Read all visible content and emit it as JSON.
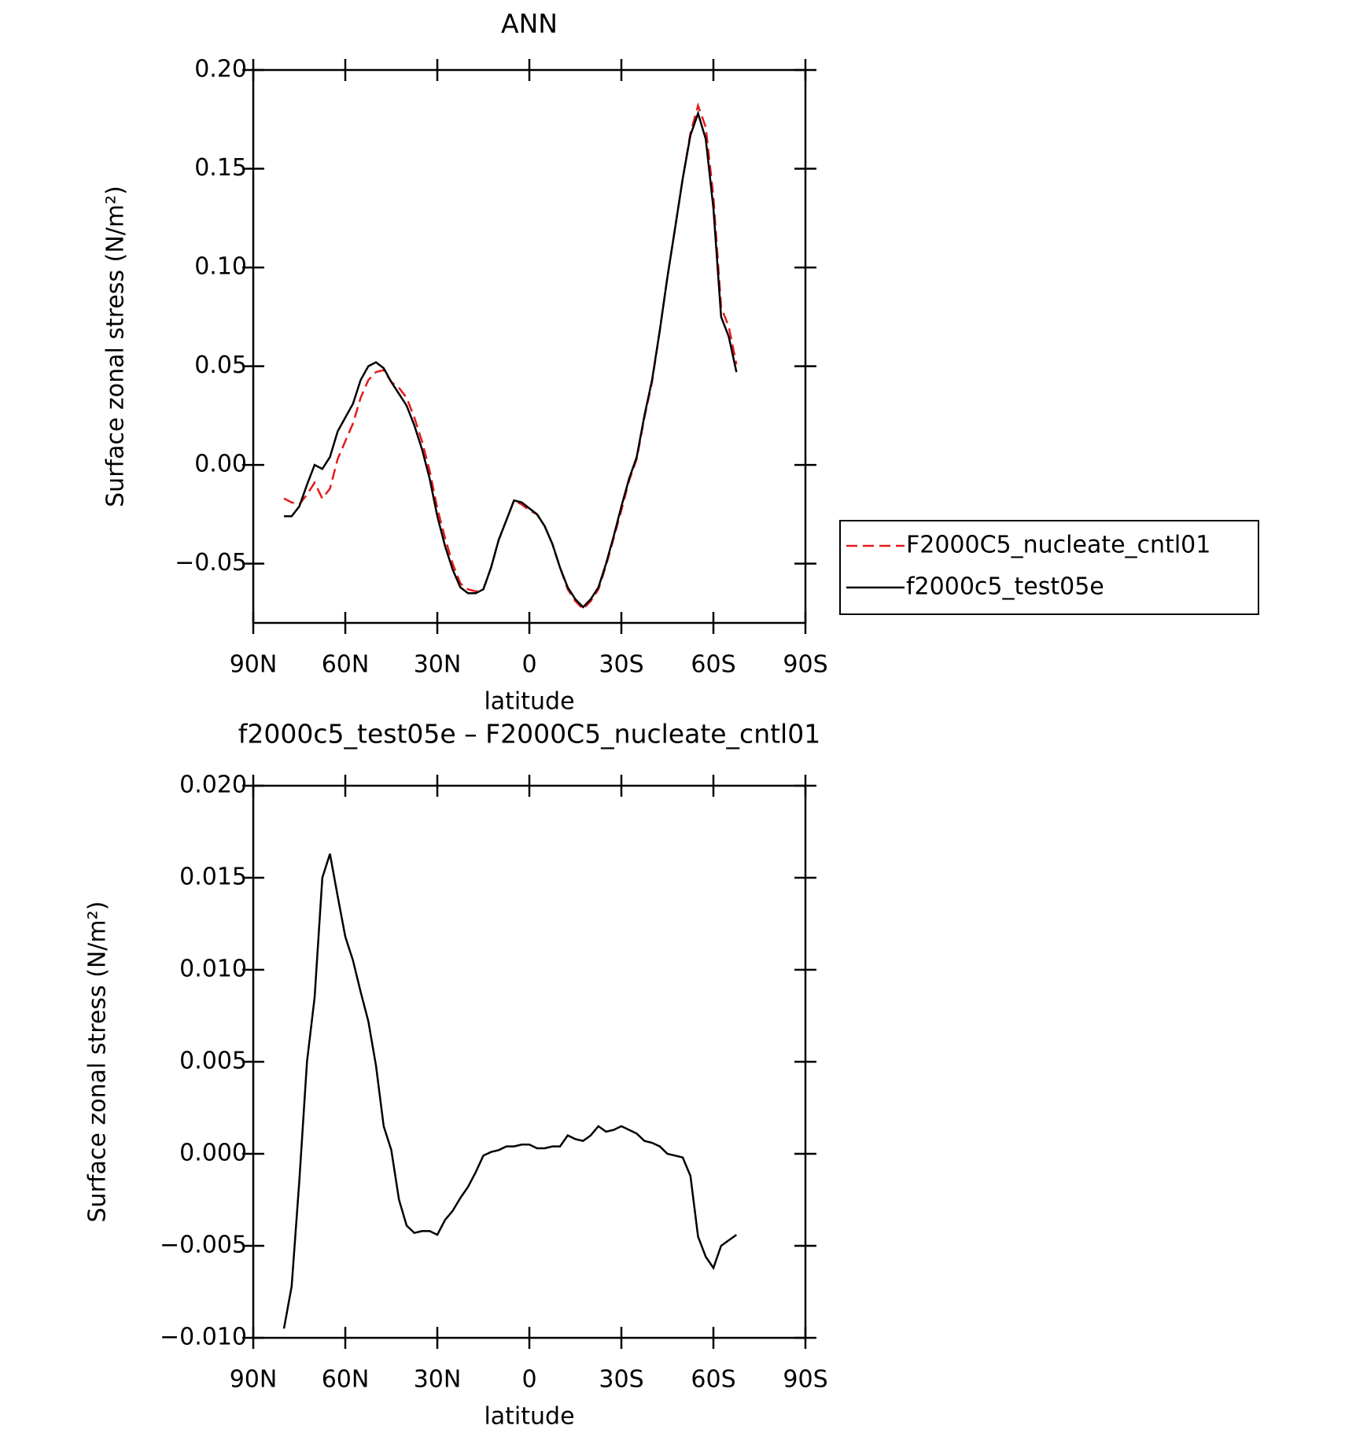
{
  "chart_data": [
    {
      "type": "line",
      "title": "ANN",
      "xlabel": "latitude",
      "ylabel": "Surface zonal stress (N/m²)",
      "x": [
        80,
        77.5,
        75,
        72.5,
        70,
        67.5,
        65,
        62.5,
        60,
        57.5,
        55,
        52.5,
        50,
        47.5,
        45,
        42.5,
        40,
        37.5,
        35,
        32.5,
        30,
        27.5,
        25,
        22.5,
        20,
        17.5,
        15,
        12.5,
        10,
        7.5,
        5,
        2.5,
        0,
        -2.5,
        -5,
        -7.5,
        -10,
        -12.5,
        -15,
        -17.5,
        -20,
        -22.5,
        -25,
        -27.5,
        -30,
        -32.5,
        -35,
        -37.5,
        -40,
        -42.5,
        -45,
        -47.5,
        -50,
        -52.5,
        -55,
        -57.5,
        -60,
        -62.5,
        -65,
        -67.5
      ],
      "series": [
        {
          "name": "F2000C5_nucleate_cntl01",
          "color": "#e41a1c",
          "dash": true,
          "values": [
            -0.017,
            -0.019,
            -0.02,
            -0.015,
            -0.009,
            -0.017,
            -0.012,
            0.003,
            0.012,
            0.021,
            0.034,
            0.043,
            0.047,
            0.048,
            0.042,
            0.039,
            0.034,
            0.024,
            0.012,
            -0.003,
            -0.022,
            -0.037,
            -0.05,
            -0.06,
            -0.063,
            -0.064,
            -0.063,
            -0.052,
            -0.038,
            -0.028,
            -0.018,
            -0.02,
            -0.023,
            -0.025,
            -0.031,
            -0.04,
            -0.052,
            -0.063,
            -0.069,
            -0.073,
            -0.069,
            -0.063,
            -0.051,
            -0.037,
            -0.023,
            -0.008,
            0.003,
            0.024,
            0.042,
            0.068,
            0.095,
            0.12,
            0.145,
            0.168,
            0.182,
            0.171,
            0.136,
            0.08,
            0.07,
            0.051
          ]
        },
        {
          "name": "f2000c5_test05e",
          "color": "#000000",
          "dash": false,
          "values": [
            -0.026,
            -0.026,
            -0.021,
            -0.01,
            0.0,
            -0.002,
            0.004,
            0.017,
            0.024,
            0.031,
            0.043,
            0.05,
            0.052,
            0.049,
            0.042,
            0.036,
            0.03,
            0.02,
            0.008,
            -0.007,
            -0.026,
            -0.041,
            -0.053,
            -0.062,
            -0.065,
            -0.065,
            -0.063,
            -0.052,
            -0.038,
            -0.028,
            -0.018,
            -0.019,
            -0.022,
            -0.025,
            -0.031,
            -0.04,
            -0.052,
            -0.062,
            -0.068,
            -0.072,
            -0.068,
            -0.062,
            -0.05,
            -0.036,
            -0.021,
            -0.007,
            0.004,
            0.025,
            0.043,
            0.068,
            0.095,
            0.12,
            0.145,
            0.167,
            0.178,
            0.165,
            0.13,
            0.075,
            0.065,
            0.047
          ]
        }
      ],
      "xlim": [
        90,
        -90
      ],
      "xticks": [
        {
          "value": 90,
          "label": "90N"
        },
        {
          "value": 60,
          "label": "60N"
        },
        {
          "value": 30,
          "label": "30N"
        },
        0,
        {
          "value": -30,
          "label": "30S"
        },
        {
          "value": -60,
          "label": "60S"
        },
        {
          "value": -90,
          "label": "90S"
        }
      ],
      "ylim": [
        -0.08,
        0.2
      ],
      "yticks": [
        {
          "value": -0.05,
          "label": "−0.05"
        },
        {
          "value": 0,
          "label": "0.00"
        },
        0.05,
        {
          "value": 0.1,
          "label": "0.10"
        },
        0.15,
        {
          "value": 0.2,
          "label": "0.20"
        }
      ],
      "legend": "right"
    },
    {
      "type": "line",
      "title": "f2000c5_test05e – F2000C5_nucleate_cntl01",
      "xlabel": "latitude",
      "ylabel": "Surface zonal stress (N/m²)",
      "x": [
        80,
        77.5,
        75,
        72.5,
        70,
        67.5,
        65,
        62.5,
        60,
        57.5,
        55,
        52.5,
        50,
        47.5,
        45,
        42.5,
        40,
        37.5,
        35,
        32.5,
        30,
        27.5,
        25,
        22.5,
        20,
        17.5,
        15,
        12.5,
        10,
        7.5,
        5,
        2.5,
        0,
        -2.5,
        -5,
        -7.5,
        -10,
        -12.5,
        -15,
        -17.5,
        -20,
        -22.5,
        -25,
        -27.5,
        -30,
        -32.5,
        -35,
        -37.5,
        -40,
        -42.5,
        -45,
        -47.5,
        -50,
        -52.5,
        -55,
        -57.5,
        -60,
        -62.5,
        -65,
        -67.5
      ],
      "series": [
        {
          "color": "#000000",
          "dash": false,
          "values": [
            -0.0095,
            -0.0072,
            -0.0015,
            0.005,
            0.0085,
            0.015,
            0.0163,
            0.014,
            0.0118,
            0.0105,
            0.0088,
            0.0072,
            0.0048,
            0.0015,
            0.0002,
            -0.0025,
            -0.0039,
            -0.0043,
            -0.0042,
            -0.0042,
            -0.0044,
            -0.0036,
            -0.0031,
            -0.0024,
            -0.0018,
            -0.001,
            -0.0001,
            0.0001,
            0.0002,
            0.0004,
            0.0004,
            0.0005,
            0.0005,
            0.0003,
            0.0003,
            0.0004,
            0.0004,
            0.001,
            0.0008,
            0.0007,
            0.001,
            0.0015,
            0.0012,
            0.0013,
            0.0015,
            0.0013,
            0.0011,
            0.0007,
            0.0006,
            0.0004,
            0.0,
            -0.0001,
            -0.0002,
            -0.0012,
            -0.0045,
            -0.0056,
            -0.0062,
            -0.005,
            -0.0047,
            -0.0044
          ]
        }
      ],
      "xlim": [
        90,
        -90
      ],
      "xticks": [
        {
          "value": 90,
          "label": "90N"
        },
        {
          "value": 60,
          "label": "60N"
        },
        {
          "value": 30,
          "label": "30N"
        },
        0,
        {
          "value": -30,
          "label": "30S"
        },
        {
          "value": -60,
          "label": "60S"
        },
        {
          "value": -90,
          "label": "90S"
        }
      ],
      "ylim": [
        -0.01,
        0.02
      ],
      "yticks": [
        {
          "value": -0.01,
          "label": "−0.010"
        },
        {
          "value": -0.005,
          "label": "−0.005"
        },
        {
          "value": 0,
          "label": "0.000"
        },
        0.005,
        {
          "value": 0.01,
          "label": "0.010"
        },
        0.015,
        {
          "value": 0.02,
          "label": "0.020"
        }
      ]
    }
  ]
}
